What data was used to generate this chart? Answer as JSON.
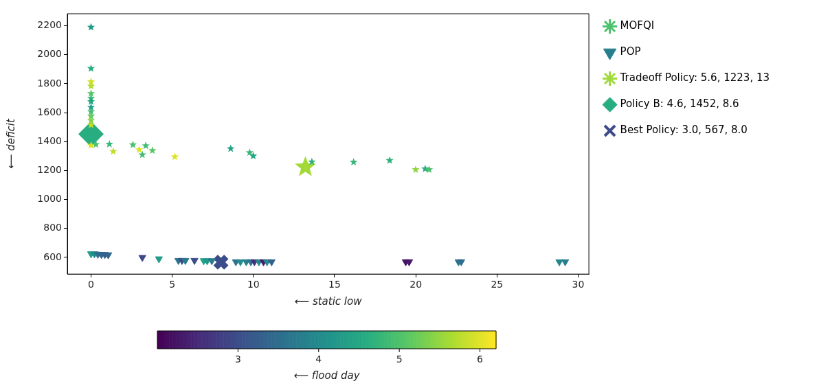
{
  "chart_data": {
    "type": "scatter",
    "xlabel": "⟵ static low",
    "ylabel": "⟵ deficit",
    "clabel": "⟵ flood day",
    "xlim": [
      -1.46,
      30.66
    ],
    "xticks": [
      0,
      5,
      10,
      15,
      20,
      25,
      30
    ],
    "ylim": [
      485,
      2283
    ],
    "yticks": [
      600,
      800,
      1000,
      1200,
      1400,
      1600,
      1800,
      2000,
      2200
    ],
    "clim": [
      2.0,
      6.2
    ],
    "cticks": [
      3,
      4,
      5,
      6
    ],
    "grid": false,
    "legend": "top right",
    "series": [
      {
        "name": "MOFQI",
        "type": "scatter",
        "marker": "star",
        "x": [
          2.58,
          0,
          0,
          0,
          0,
          0,
          0,
          0,
          0,
          0,
          0,
          0,
          0,
          0,
          0.3,
          1.13,
          1.37,
          2.97,
          3.16,
          3.37,
          3.78,
          5.16,
          8.6,
          9.77,
          9.99,
          13.6,
          16.17,
          18.39,
          19.99,
          20.58,
          20.82
        ],
        "values": [
          1378,
          2190,
          1905,
          1813,
          1783,
          1732,
          1699,
          1676,
          1637,
          1607,
          1576,
          1546,
          1515,
          1374,
          1380,
          1382,
          1332,
          1344,
          1309,
          1371,
          1338,
          1295,
          1351,
          1324,
          1301,
          1260,
          1258,
          1270,
          1206,
          1212,
          1206
        ],
        "colors": [
          "#4cc26c",
          "#219c88",
          "#28ac80",
          "#d0e126",
          "#b0dc2e",
          "#59c664",
          "#39b777",
          "#22a784",
          "#22a186",
          "#41bd72",
          "#65ca5d",
          "#81d24d",
          "#c0df26",
          "#d0e126",
          "#4cc26c",
          "#39b777",
          "#c0df26",
          "#dee325",
          "#41bd72",
          "#41bd72",
          "#59c664",
          "#dee325",
          "#22a186",
          "#39b777",
          "#22a784",
          "#31b27b",
          "#39b777",
          "#31b27b",
          "#90d643",
          "#28ac80",
          "#4cc26c"
        ]
      },
      {
        "name": "POP",
        "type": "scatter",
        "marker": "triangle",
        "x": [
          29.2,
          0,
          0.21,
          0.42,
          0.64,
          0.85,
          1.06,
          3.16,
          4.18,
          5.38,
          5.6,
          5.81,
          6.37,
          6.94,
          7.15,
          7.44,
          8.92,
          9.2,
          9.56,
          9.84,
          10.06,
          10.34,
          10.62,
          10.84,
          11.12,
          19.38,
          19.59,
          22.63,
          22.8,
          28.84
        ],
        "values": [
          570,
          625,
          625,
          622,
          620,
          620,
          618,
          600,
          590,
          579,
          579,
          579,
          579,
          577,
          577,
          577,
          570,
          570,
          570,
          570,
          570,
          570,
          570,
          570,
          570,
          570,
          570,
          570,
          570,
          570
        ],
        "colors": [
          "#277f8d",
          "#219c88",
          "#238b8c",
          "#2f6d8e",
          "#31678d",
          "#34618d",
          "#31678d",
          "#3f4888",
          "#219c88",
          "#2c738e",
          "#3c4e89",
          "#2a798e",
          "#3c4e89",
          "#22a186",
          "#21978a",
          "#2a798e",
          "#2c738e",
          "#238b8c",
          "#277f8d",
          "#2c738e",
          "#45327d",
          "#25858d",
          "#471a6b",
          "#238b8c",
          "#34618d",
          "#461264",
          "#471a6b",
          "#2c738e",
          "#2f6d8e",
          "#25858d"
        ]
      },
      {
        "name": "Tradeoff Policy: 5.6, 1223, 13",
        "type": "scatter",
        "marker": "star",
        "color": "#9fda3a",
        "x": [
          13.2
        ],
        "values": [
          1223
        ],
        "cvalues": [
          5.6
        ]
      },
      {
        "name": "Policy B: 4.6, 1452, 8.6",
        "type": "scatter",
        "marker": "diamond",
        "color": "#27ad81",
        "x": [
          0
        ],
        "values": [
          1452
        ],
        "cvalues": [
          4.6
        ]
      },
      {
        "name": "Best Policy: 3.0, 567, 8.0",
        "type": "scatter",
        "marker": "cross",
        "color": "#3e4a89",
        "x": [
          8.0
        ],
        "values": [
          567
        ],
        "cvalues": [
          3.0
        ]
      }
    ]
  }
}
